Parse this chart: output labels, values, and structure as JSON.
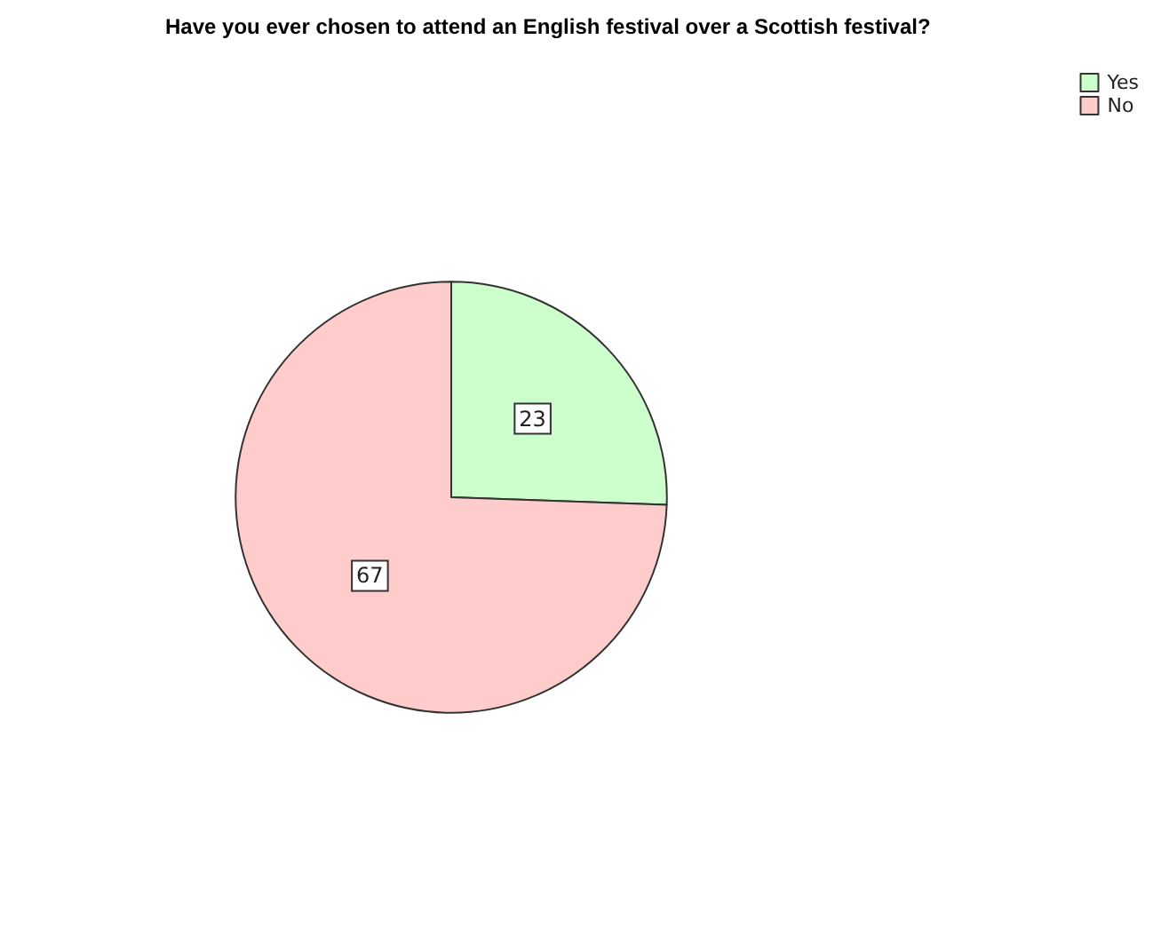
{
  "chart_data": {
    "type": "pie",
    "title": "Have you ever chosen to attend an English festival over a Scottish festival?",
    "categories": [
      "Yes",
      "No"
    ],
    "values": [
      23,
      67
    ],
    "colors": [
      "#ccffcc",
      "#ffcccc"
    ],
    "data_labels": true,
    "legend": "top right"
  }
}
